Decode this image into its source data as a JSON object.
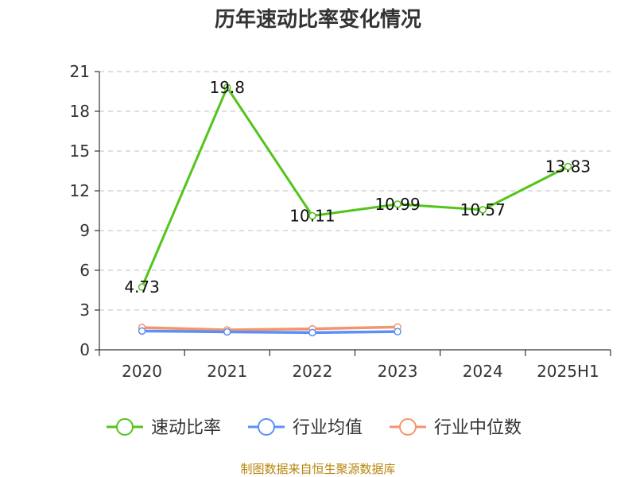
{
  "chart_data": {
    "type": "line",
    "title": "历年速动比率变化情况",
    "categories": [
      "2020",
      "2021",
      "2022",
      "2023",
      "2024",
      "2025H1"
    ],
    "ylim": [
      0,
      21
    ],
    "yticks": [
      0,
      3,
      6,
      9,
      12,
      15,
      18,
      21
    ],
    "grid": true,
    "legend_position": "bottom",
    "series": [
      {
        "name": "速动比率",
        "color": "#52c41a",
        "values": [
          4.73,
          19.8,
          10.11,
          10.99,
          10.57,
          13.83
        ],
        "labels": [
          "4.73",
          "19.8",
          "10.11",
          "10.99",
          "10.57",
          "13.83"
        ]
      },
      {
        "name": "行业均值",
        "color": "#5b8ff9",
        "values": [
          1.42,
          1.35,
          1.3,
          1.37,
          null,
          null
        ]
      },
      {
        "name": "行业中位数",
        "color": "#f4956b",
        "values": [
          1.68,
          1.5,
          1.58,
          1.72,
          null,
          null
        ]
      }
    ]
  },
  "source_text": "制图数据来自恒生聚源数据库"
}
